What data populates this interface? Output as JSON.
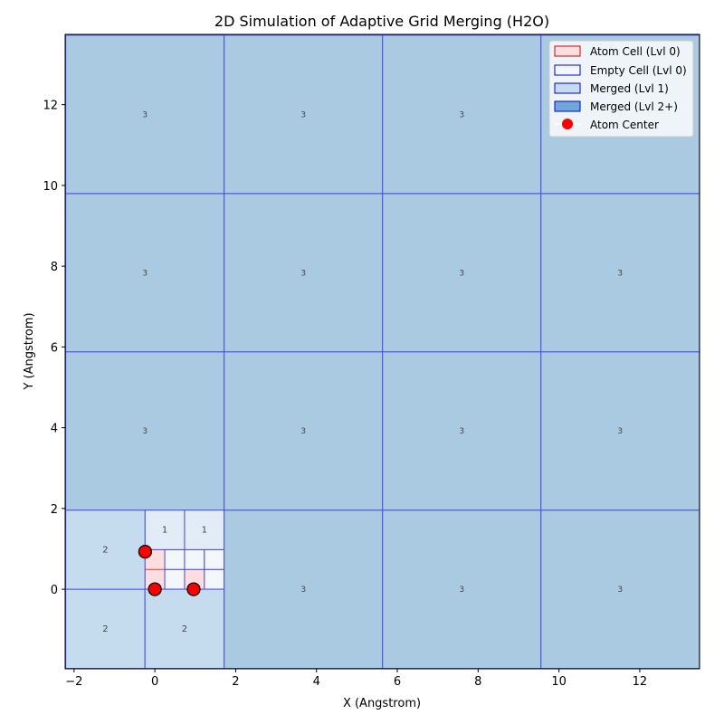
{
  "chart_data": {
    "type": "heatmap",
    "title": "2D Simulation of Adaptive Grid Merging (H2O)",
    "xlabel": "X (Angstrom)",
    "ylabel": "Y (Angstrom)",
    "xlim": [
      -2.22,
      13.48
    ],
    "ylim": [
      -1.97,
      13.74
    ],
    "xticks": [
      -2,
      0,
      2,
      4,
      6,
      8,
      10,
      12
    ],
    "yticks": [
      0,
      2,
      4,
      6,
      8,
      10,
      12
    ],
    "base_cell": 0.49,
    "colors": {
      "atom": "#fcdede",
      "empty": "#f2f7fc",
      "lvl1": "#e1ecf6",
      "lvl2": "#c4dcee",
      "lvl3": "#aacae2",
      "edge": "#4a4af0",
      "atom_edge": "#e05050",
      "atom_center": "#ff0000"
    },
    "cells": [
      {
        "x": -0.245,
        "y": 0,
        "size": 0.49,
        "level": 0,
        "kind": "atom"
      },
      {
        "x": -0.245,
        "y": 0.49,
        "size": 0.49,
        "level": 0,
        "kind": "atom"
      },
      {
        "x": 0.735,
        "y": 0,
        "size": 0.49,
        "level": 0,
        "kind": "atom"
      },
      {
        "x": 0.245,
        "y": 0,
        "size": 0.49,
        "level": 0,
        "kind": "empty"
      },
      {
        "x": 1.225,
        "y": 0,
        "size": 0.49,
        "level": 0,
        "kind": "empty"
      },
      {
        "x": 0.245,
        "y": 0.49,
        "size": 0.49,
        "level": 0,
        "kind": "empty"
      },
      {
        "x": 0.735,
        "y": 0.49,
        "size": 0.49,
        "level": 0,
        "kind": "empty"
      },
      {
        "x": 1.225,
        "y": 0.49,
        "size": 0.49,
        "level": 0,
        "kind": "empty"
      },
      {
        "x": -0.245,
        "y": 0.98,
        "size": 0.98,
        "level": 1,
        "kind": "merged"
      },
      {
        "x": 0.735,
        "y": 0.98,
        "size": 0.98,
        "level": 1,
        "kind": "merged"
      },
      {
        "x": -2.205,
        "y": -1.96,
        "size": 1.96,
        "level": 2,
        "kind": "merged"
      },
      {
        "x": -2.205,
        "y": 0,
        "size": 1.96,
        "level": 2,
        "kind": "merged"
      },
      {
        "x": -0.245,
        "y": -1.96,
        "size": 1.96,
        "level": 2,
        "kind": "merged"
      },
      {
        "x": 1.715,
        "y": -1.96,
        "size": 3.92,
        "level": 3,
        "kind": "merged"
      },
      {
        "x": 5.635,
        "y": -1.96,
        "size": 3.92,
        "level": 3,
        "kind": "merged"
      },
      {
        "x": 9.555,
        "y": -1.96,
        "size": 3.92,
        "level": 3,
        "kind": "merged"
      },
      {
        "x": -2.205,
        "y": 1.96,
        "size": 3.92,
        "level": 3,
        "kind": "merged"
      },
      {
        "x": 1.715,
        "y": 1.96,
        "size": 3.92,
        "level": 3,
        "kind": "merged"
      },
      {
        "x": 5.635,
        "y": 1.96,
        "size": 3.92,
        "level": 3,
        "kind": "merged"
      },
      {
        "x": 9.555,
        "y": 1.96,
        "size": 3.92,
        "level": 3,
        "kind": "merged"
      },
      {
        "x": -2.205,
        "y": 5.88,
        "size": 3.92,
        "level": 3,
        "kind": "merged"
      },
      {
        "x": 1.715,
        "y": 5.88,
        "size": 3.92,
        "level": 3,
        "kind": "merged"
      },
      {
        "x": 5.635,
        "y": 5.88,
        "size": 3.92,
        "level": 3,
        "kind": "merged"
      },
      {
        "x": 9.555,
        "y": 5.88,
        "size": 3.92,
        "level": 3,
        "kind": "merged"
      },
      {
        "x": -2.205,
        "y": 9.8,
        "size": 3.92,
        "level": 3,
        "kind": "merged"
      },
      {
        "x": 1.715,
        "y": 9.8,
        "size": 3.92,
        "level": 3,
        "kind": "merged"
      },
      {
        "x": 5.635,
        "y": 9.8,
        "size": 3.92,
        "level": 3,
        "kind": "merged"
      },
      {
        "x": 9.555,
        "y": 9.8,
        "size": 3.92,
        "level": 3,
        "kind": "merged"
      }
    ],
    "atoms": [
      {
        "x": 0,
        "y": 0
      },
      {
        "x": 0.96,
        "y": 0
      },
      {
        "x": -0.24,
        "y": 0.93
      }
    ],
    "legend": {
      "placement": "top-right",
      "entries": [
        "Atom Cell (Lvl 0)",
        "Empty Cell (Lvl 0)",
        "Merged (Lvl 1)",
        "Merged (Lvl 2+)",
        "Atom Center"
      ]
    }
  }
}
